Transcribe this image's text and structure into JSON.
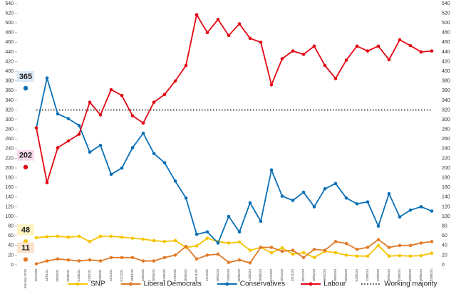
{
  "chart_data": {
    "type": "line",
    "categories": [
      "Election 2019",
      "29/12/20",
      "13/01/21",
      "08/03/21",
      "06/05/21",
      "31/05/21",
      "21/07/21",
      "13/09/21",
      "13/10/21",
      "01/12/21",
      "18/01/22",
      "14/03/22",
      "26/04/22",
      "21/06/22",
      "27/07/22",
      "30/09/22",
      "06/11/22",
      "11/12/22",
      "28/01/23",
      "19/03/23",
      "06/05/23",
      "11/06/23",
      "30/08/23",
      "01/10/23",
      "28/10/23",
      "25/11/23",
      "29/12/23",
      "18/01/24",
      "26/02/24",
      "18/03/24",
      "05/04/24",
      "01/05/24",
      "12/05/24",
      "19/05/24",
      "26/05/24",
      "02/06/24",
      "09/06/24",
      "16/06/24",
      "23/06/24"
    ],
    "ylim": [
      0,
      540
    ],
    "yticks": [
      0,
      20,
      40,
      60,
      80,
      100,
      120,
      140,
      160,
      180,
      200,
      220,
      240,
      260,
      280,
      300,
      320,
      340,
      360,
      380,
      400,
      420,
      440,
      460,
      480,
      500,
      520,
      540
    ],
    "series": [
      {
        "name": "SNP",
        "color": "#f5c400",
        "election": 48,
        "values": [
          null,
          56,
          58,
          59,
          57,
          59,
          48,
          59,
          59,
          57,
          55,
          53,
          50,
          48,
          50,
          36,
          39,
          55,
          48,
          45,
          47,
          30,
          36,
          25,
          35,
          22,
          25,
          15,
          28,
          25,
          20,
          18,
          18,
          40,
          18,
          19,
          18,
          19,
          24
        ]
      },
      {
        "name": "Liberal Democrats",
        "color": "#e07b2a",
        "election": 11,
        "values": [
          null,
          2,
          8,
          12,
          10,
          8,
          10,
          8,
          15,
          15,
          15,
          8,
          8,
          15,
          20,
          38,
          12,
          20,
          22,
          5,
          10,
          4,
          36,
          36,
          28,
          30,
          15,
          32,
          30,
          48,
          44,
          32,
          36,
          52,
          36,
          40,
          40,
          45,
          48
        ]
      },
      {
        "name": "Conservatives",
        "color": "#0a6fb6",
        "election": 365,
        "values": [
          null,
          283,
          386,
          312,
          302,
          288,
          233,
          247,
          187,
          200,
          242,
          272,
          230,
          211,
          173,
          138,
          63,
          68,
          45,
          100,
          68,
          128,
          90,
          196,
          142,
          133,
          150,
          120,
          157,
          168,
          138,
          126,
          130,
          80,
          147,
          99,
          113,
          120,
          111
        ]
      },
      {
        "name": "Labour",
        "color": "#e30613",
        "election": 202,
        "values": [
          null,
          283,
          170,
          242,
          256,
          270,
          336,
          310,
          362,
          350,
          308,
          293,
          336,
          352,
          380,
          412,
          517,
          480,
          507,
          474,
          498,
          468,
          460,
          372,
          426,
          442,
          435,
          452,
          412,
          385,
          423,
          452,
          442,
          452,
          424,
          465,
          453,
          440,
          442
        ]
      }
    ],
    "election_label_colors": [
      "#fff4c2",
      "#fbe3d0",
      "#dce9f7",
      "#f6dcec"
    ],
    "reference_line": {
      "name": "Working majority",
      "value": 320,
      "color": "#000000"
    }
  }
}
